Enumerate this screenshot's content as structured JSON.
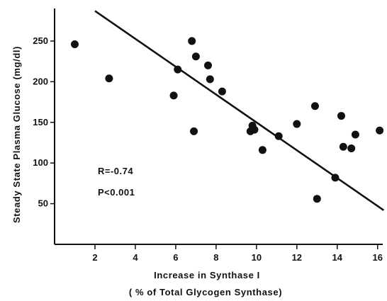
{
  "chart_data": {
    "type": "scatter",
    "xlabel": "Increase in Synthase I",
    "xlabel_sub": "( % of Total Glycogen Synthase)",
    "ylabel": "Steady State Plasma Glucose (mg/dl)",
    "xlim": [
      0,
      16.5
    ],
    "ylim": [
      0,
      290
    ],
    "xticks": [
      2,
      4,
      6,
      8,
      10,
      12,
      14,
      16
    ],
    "xtick_labels": [
      "2",
      "4",
      "6",
      "8",
      "10",
      "12",
      "14",
      "16"
    ],
    "yticks": [
      50,
      100,
      150,
      200,
      250
    ],
    "ytick_labels": [
      "50",
      "100",
      "150",
      "200",
      "250"
    ],
    "grid": false,
    "points": [
      {
        "x": 1.0,
        "y": 246
      },
      {
        "x": 2.7,
        "y": 204
      },
      {
        "x": 5.9,
        "y": 183
      },
      {
        "x": 6.1,
        "y": 215
      },
      {
        "x": 6.8,
        "y": 250
      },
      {
        "x": 6.9,
        "y": 139
      },
      {
        "x": 7.0,
        "y": 231
      },
      {
        "x": 7.6,
        "y": 220
      },
      {
        "x": 7.7,
        "y": 203
      },
      {
        "x": 8.3,
        "y": 188
      },
      {
        "x": 9.7,
        "y": 139
      },
      {
        "x": 9.8,
        "y": 146
      },
      {
        "x": 9.9,
        "y": 141
      },
      {
        "x": 10.3,
        "y": 116
      },
      {
        "x": 11.1,
        "y": 133
      },
      {
        "x": 12.0,
        "y": 148
      },
      {
        "x": 12.9,
        "y": 170
      },
      {
        "x": 13.0,
        "y": 56
      },
      {
        "x": 13.9,
        "y": 82
      },
      {
        "x": 14.2,
        "y": 158
      },
      {
        "x": 14.3,
        "y": 120
      },
      {
        "x": 14.7,
        "y": 118
      },
      {
        "x": 14.9,
        "y": 135
      },
      {
        "x": 16.1,
        "y": 140
      }
    ],
    "regression_line": {
      "x": [
        2.0,
        16.3
      ],
      "y": [
        287,
        42
      ]
    },
    "annotations": [
      "R=-0.74",
      "P<0.001"
    ]
  }
}
